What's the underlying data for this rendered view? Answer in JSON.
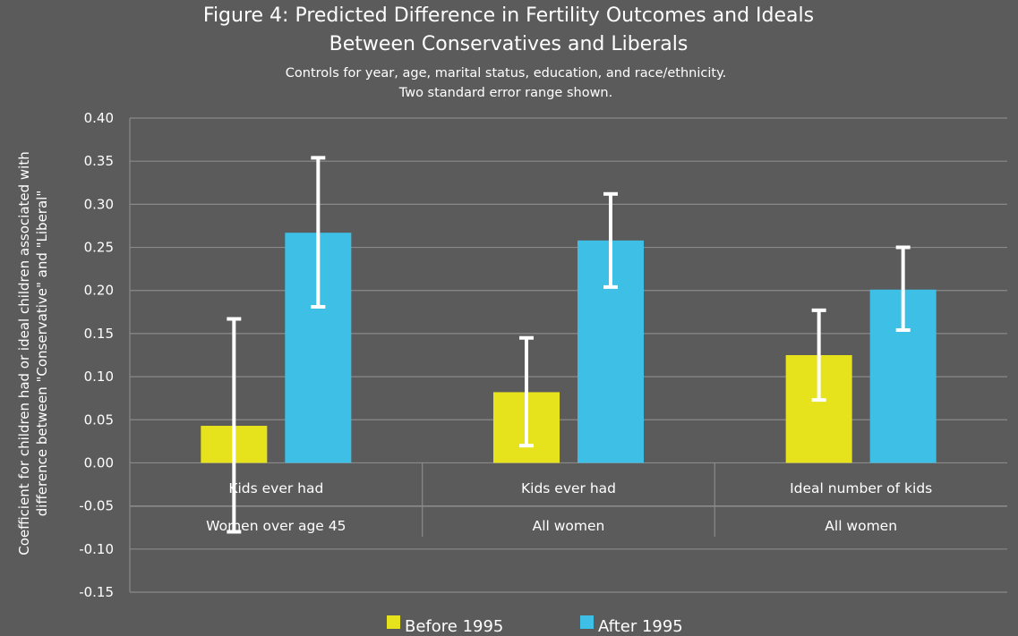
{
  "chart_data": {
    "type": "bar",
    "title_line1": "Figure 4: Predicted Difference in Fertility Outcomes and Ideals",
    "title_line2": "Between Conservatives and Liberals",
    "subtitle_line1": "Controls for year, age, marital status, education, and race/ethnicity.",
    "subtitle_line2": "Two standard error range shown.",
    "ylabel_line1": "Coefficient for children had or ideal children associated with",
    "ylabel_line2": "difference between \"Conservative\" and \"Liberal\"",
    "ylim": [
      -0.15,
      0.4
    ],
    "yticks": [
      -0.15,
      -0.1,
      -0.05,
      0.0,
      0.05,
      0.1,
      0.15,
      0.2,
      0.25,
      0.3,
      0.35,
      0.4
    ],
    "ytick_labels": [
      "-0.15",
      "-0.10",
      "-0.05",
      "0.00",
      "0.05",
      "0.10",
      "0.15",
      "0.20",
      "0.25",
      "0.30",
      "0.35",
      "0.40"
    ],
    "grid": true,
    "legend_position": "bottom",
    "categories": [
      {
        "outcome": "Kids ever had",
        "group": "Women over age 45"
      },
      {
        "outcome": "Kids ever had",
        "group": "All women"
      },
      {
        "outcome": "Ideal number of kids",
        "group": "All women"
      }
    ],
    "series": [
      {
        "name": "Before 1995",
        "color": "#e6e21c",
        "values": [
          0.043,
          0.082,
          0.125
        ],
        "error_low": [
          -0.08,
          0.02,
          0.073
        ],
        "error_high": [
          0.167,
          0.145,
          0.177
        ]
      },
      {
        "name": "After 1995",
        "color": "#3ebfe6",
        "values": [
          0.267,
          0.258,
          0.201
        ],
        "error_low": [
          0.181,
          0.204,
          0.154
        ],
        "error_high": [
          0.354,
          0.312,
          0.25
        ]
      }
    ]
  }
}
